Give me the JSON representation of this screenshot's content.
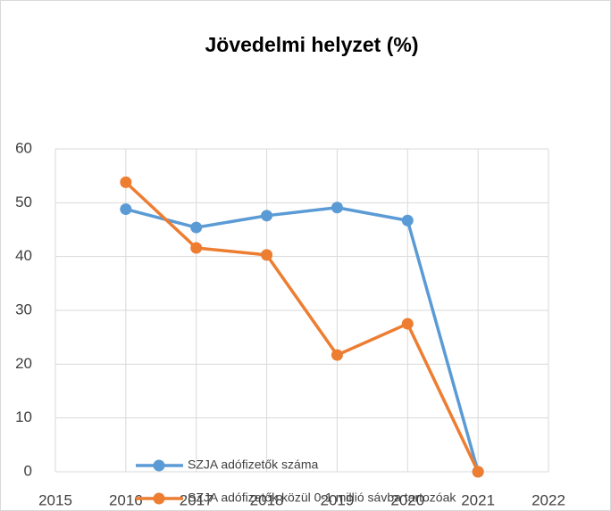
{
  "chart_data": {
    "type": "line",
    "title": "Jövedelmi helyzet (%)",
    "x": [
      2016,
      2017,
      2018,
      2019,
      2020,
      2021
    ],
    "series": [
      {
        "name": "SZJA adófizetők száma",
        "color": "#5b9bd5",
        "values": [
          48.8,
          45.4,
          47.6,
          49.1,
          46.7,
          0
        ]
      },
      {
        "name": "SZJA adófizetők közül 0-1 millió sávba tartozóak",
        "color": "#ed7d31",
        "values": [
          53.8,
          41.6,
          40.3,
          21.7,
          27.5,
          0
        ]
      }
    ],
    "xlim": [
      2015,
      2022
    ],
    "xticks": [
      2015,
      2016,
      2017,
      2018,
      2019,
      2020,
      2021,
      2022
    ],
    "ylim": [
      0,
      60
    ],
    "yticks": [
      0,
      10,
      20,
      30,
      40,
      50,
      60
    ],
    "grid": true
  }
}
